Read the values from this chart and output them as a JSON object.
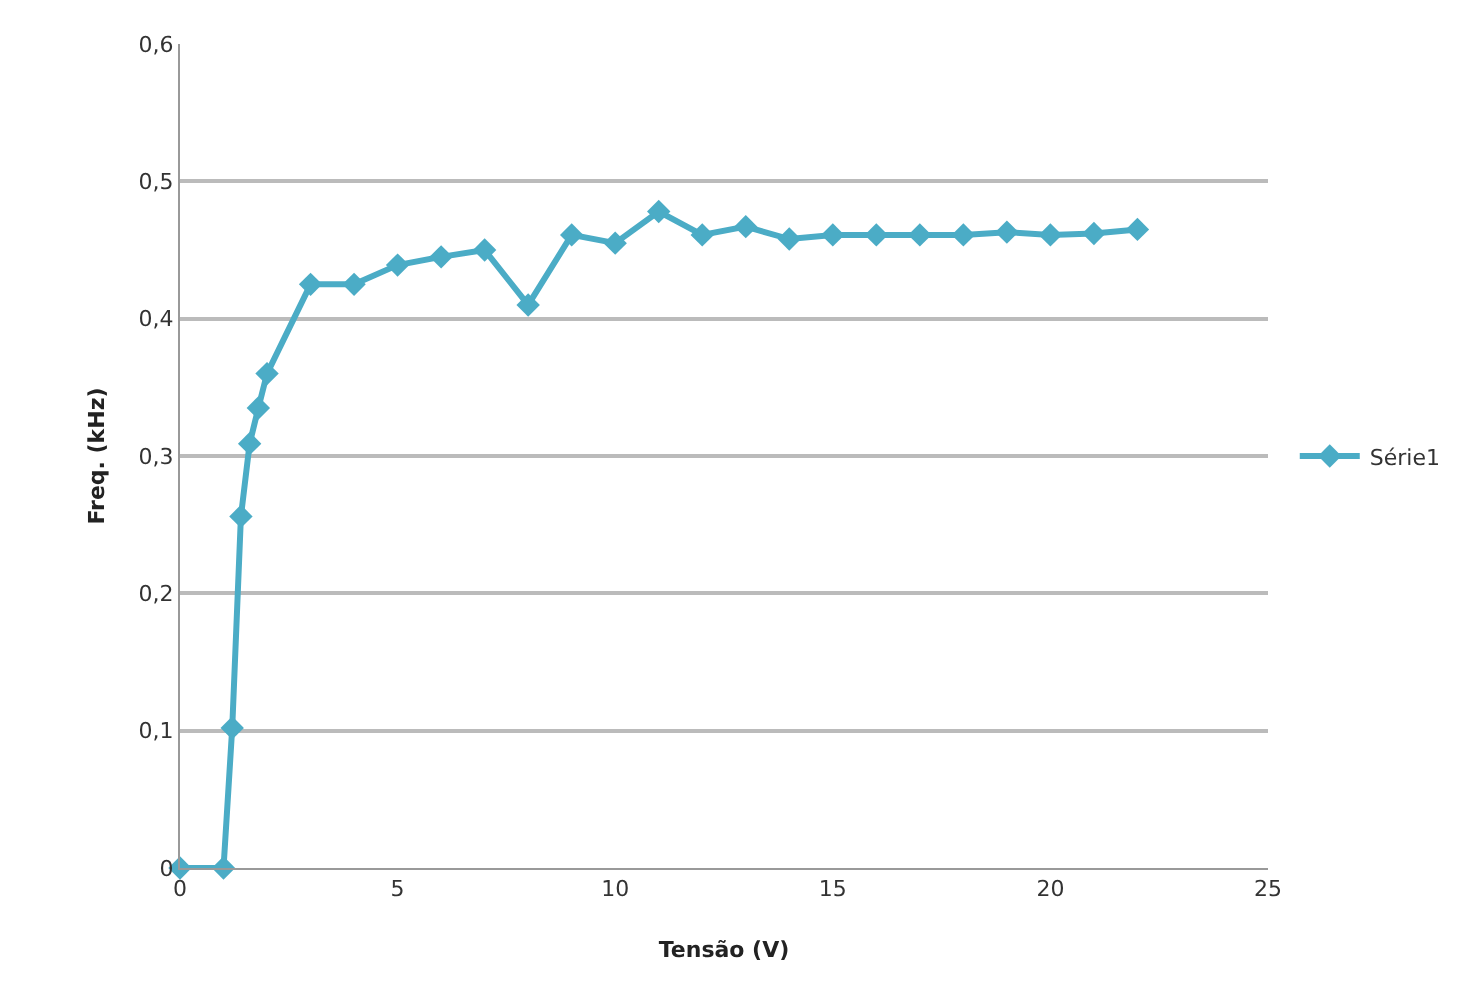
{
  "chart_data": {
    "type": "line",
    "xlabel": "Tensão (V)",
    "ylabel": "Freq. (kHz)",
    "x": [
      0,
      1,
      1.2,
      1.4,
      1.6,
      1.8,
      2,
      3,
      4,
      5,
      6,
      7,
      8,
      9,
      10,
      11,
      12,
      13,
      14,
      15,
      16,
      17,
      18,
      19,
      20,
      21,
      22
    ],
    "series": [
      {
        "name": "Série1",
        "color": "#4bacc6",
        "values": [
          0,
          0,
          0.102,
          0.256,
          0.309,
          0.335,
          0.36,
          0.425,
          0.425,
          0.439,
          0.445,
          0.45,
          0.41,
          0.461,
          0.455,
          0.478,
          0.461,
          0.467,
          0.458,
          0.461,
          0.461,
          0.461,
          0.461,
          0.463,
          0.461,
          0.462,
          0.465
        ]
      }
    ],
    "xlim": [
      0,
      25
    ],
    "xticks": [
      0,
      5,
      10,
      15,
      20,
      25
    ],
    "ylim": [
      0,
      0.6
    ],
    "yticks": [
      0,
      {
        "value": 0.1,
        "label": "0,1"
      },
      {
        "value": 0.2,
        "label": "0,2"
      },
      {
        "value": 0.3,
        "label": "0,3"
      },
      {
        "value": 0.4,
        "label": "0,4"
      },
      {
        "value": 0.5,
        "label": "0,5"
      },
      {
        "value": 0.6,
        "label": "0,6"
      }
    ],
    "grid": "y",
    "legend": "right",
    "marker": "diamond",
    "line_style": "solid"
  }
}
